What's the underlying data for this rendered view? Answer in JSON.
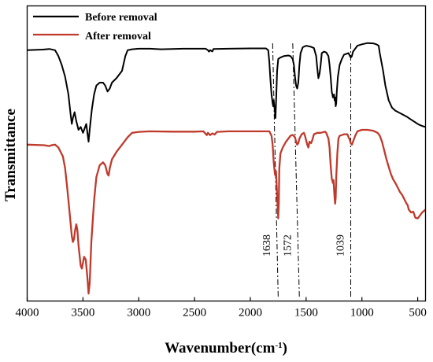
{
  "chart_data": {
    "type": "line",
    "title": "",
    "xlabel": "Wavenumber(cm",
    "xlabel_sup": "-1",
    "xlabel_close": ")",
    "ylabel": "Transmittance",
    "xlim": [
      4000,
      430
    ],
    "ylim": [
      0,
      100
    ],
    "x_reversed": true,
    "grid": false,
    "legend_position": "top-left",
    "x_ticks": [
      "4000",
      "3500",
      "3000",
      "2500",
      "2000",
      "1500",
      "1000",
      "500"
    ],
    "series": [
      {
        "name": "Before removal",
        "color": "#000000",
        "points": [
          [
            4000,
            85
          ],
          [
            3860,
            85.2
          ],
          [
            3800,
            85.4
          ],
          [
            3750,
            85
          ],
          [
            3720,
            83
          ],
          [
            3690,
            80
          ],
          [
            3660,
            76
          ],
          [
            3630,
            70
          ],
          [
            3610,
            63
          ],
          [
            3600,
            60
          ],
          [
            3590,
            62
          ],
          [
            3575,
            64
          ],
          [
            3560,
            61
          ],
          [
            3540,
            58
          ],
          [
            3520,
            59
          ],
          [
            3500,
            57
          ],
          [
            3490,
            58
          ],
          [
            3470,
            60
          ],
          [
            3460,
            57
          ],
          [
            3450,
            54
          ],
          [
            3440,
            58
          ],
          [
            3420,
            65
          ],
          [
            3400,
            70
          ],
          [
            3380,
            73
          ],
          [
            3350,
            74
          ],
          [
            3320,
            74
          ],
          [
            3300,
            73
          ],
          [
            3280,
            71
          ],
          [
            3260,
            72
          ],
          [
            3240,
            74
          ],
          [
            3200,
            75.5
          ],
          [
            3150,
            78
          ],
          [
            3120,
            83
          ],
          [
            3100,
            85
          ],
          [
            3060,
            85.3
          ],
          [
            3000,
            85.5
          ],
          [
            2900,
            85.5
          ],
          [
            2800,
            85.3
          ],
          [
            2600,
            85.5
          ],
          [
            2400,
            85.5
          ],
          [
            2380,
            85
          ],
          [
            2370,
            84.5
          ],
          [
            2360,
            85
          ],
          [
            2340,
            84.6
          ],
          [
            2330,
            85.4
          ],
          [
            2200,
            85.5
          ],
          [
            2000,
            85.6
          ],
          [
            1860,
            85.6
          ],
          [
            1840,
            85
          ],
          [
            1830,
            81
          ],
          [
            1820,
            75
          ],
          [
            1810,
            70
          ],
          [
            1800,
            67
          ],
          [
            1795,
            66
          ],
          [
            1790,
            68
          ],
          [
            1780,
            64
          ],
          [
            1775,
            62
          ],
          [
            1770,
            67
          ],
          [
            1760,
            78
          ],
          [
            1750,
            82
          ],
          [
            1730,
            82.5
          ],
          [
            1700,
            83
          ],
          [
            1660,
            83.2
          ],
          [
            1640,
            83
          ],
          [
            1620,
            82
          ],
          [
            1610,
            80
          ],
          [
            1600,
            76
          ],
          [
            1590,
            73
          ],
          [
            1580,
            72
          ],
          [
            1570,
            74
          ],
          [
            1560,
            80
          ],
          [
            1550,
            84
          ],
          [
            1530,
            86
          ],
          [
            1500,
            86.5
          ],
          [
            1460,
            86.2
          ],
          [
            1430,
            85.7
          ],
          [
            1410,
            83
          ],
          [
            1400,
            79
          ],
          [
            1390,
            75.5
          ],
          [
            1380,
            77
          ],
          [
            1370,
            80
          ],
          [
            1360,
            84
          ],
          [
            1340,
            84.5
          ],
          [
            1320,
            84.2
          ],
          [
            1300,
            83
          ],
          [
            1290,
            80
          ],
          [
            1280,
            76
          ],
          [
            1270,
            71
          ],
          [
            1260,
            69
          ],
          [
            1250,
            70
          ],
          [
            1245,
            68
          ],
          [
            1240,
            69
          ],
          [
            1235,
            66
          ],
          [
            1230,
            67
          ],
          [
            1225,
            71
          ],
          [
            1215,
            76
          ],
          [
            1200,
            80
          ],
          [
            1180,
            82
          ],
          [
            1160,
            83.5
          ],
          [
            1120,
            84
          ],
          [
            1100,
            82.5
          ],
          [
            1090,
            83
          ],
          [
            1080,
            84.5
          ],
          [
            1060,
            85.5
          ],
          [
            1040,
            86.5
          ],
          [
            1000,
            87
          ],
          [
            950,
            87.4
          ],
          [
            900,
            87.3
          ],
          [
            870,
            87
          ],
          [
            850,
            86.5
          ],
          [
            840,
            84
          ],
          [
            830,
            82
          ],
          [
            810,
            78
          ],
          [
            790,
            73
          ],
          [
            760,
            68
          ],
          [
            730,
            65.5
          ],
          [
            700,
            64.5
          ],
          [
            650,
            63.5
          ],
          [
            600,
            62.5
          ],
          [
            560,
            61.5
          ],
          [
            520,
            60.5
          ],
          [
            490,
            59.8
          ],
          [
            460,
            59.3
          ],
          [
            430,
            59
          ]
        ]
      },
      {
        "name": "After removal",
        "color": "#c0392b",
        "points": [
          [
            4000,
            53
          ],
          [
            3850,
            52.8
          ],
          [
            3800,
            52.5
          ],
          [
            3780,
            52.8
          ],
          [
            3750,
            53
          ],
          [
            3720,
            52
          ],
          [
            3700,
            50.5
          ],
          [
            3680,
            49
          ],
          [
            3660,
            45
          ],
          [
            3640,
            38
          ],
          [
            3620,
            30
          ],
          [
            3600,
            22
          ],
          [
            3590,
            20
          ],
          [
            3580,
            21
          ],
          [
            3570,
            24
          ],
          [
            3560,
            26
          ],
          [
            3550,
            24
          ],
          [
            3540,
            19
          ],
          [
            3520,
            12
          ],
          [
            3510,
            11
          ],
          [
            3500,
            13
          ],
          [
            3490,
            15
          ],
          [
            3475,
            14
          ],
          [
            3460,
            8
          ],
          [
            3450,
            2.5
          ],
          [
            3440,
            6
          ],
          [
            3425,
            20
          ],
          [
            3400,
            34
          ],
          [
            3380,
            42
          ],
          [
            3350,
            46
          ],
          [
            3320,
            47
          ],
          [
            3300,
            46
          ],
          [
            3280,
            43
          ],
          [
            3270,
            42.5
          ],
          [
            3260,
            45
          ],
          [
            3240,
            48
          ],
          [
            3200,
            50.5
          ],
          [
            3150,
            53
          ],
          [
            3100,
            55.5
          ],
          [
            3060,
            57
          ],
          [
            3000,
            57.3
          ],
          [
            2900,
            57.5
          ],
          [
            2700,
            57.4
          ],
          [
            2500,
            57.4
          ],
          [
            2420,
            57.5
          ],
          [
            2400,
            56.6
          ],
          [
            2390,
            56.2
          ],
          [
            2380,
            57
          ],
          [
            2360,
            56.2
          ],
          [
            2340,
            56.8
          ],
          [
            2320,
            56.4
          ],
          [
            2300,
            57.3
          ],
          [
            2200,
            57.5
          ],
          [
            2000,
            57.5
          ],
          [
            1900,
            57.5
          ],
          [
            1830,
            57.5
          ],
          [
            1810,
            56
          ],
          [
            1800,
            53
          ],
          [
            1790,
            47
          ],
          [
            1780,
            43
          ],
          [
            1775,
            42.5
          ],
          [
            1770,
            44
          ],
          [
            1765,
            40
          ],
          [
            1760,
            36
          ],
          [
            1755,
            32
          ],
          [
            1750,
            28
          ],
          [
            1745,
            33
          ],
          [
            1740,
            45
          ],
          [
            1730,
            50
          ],
          [
            1710,
            52
          ],
          [
            1680,
            54
          ],
          [
            1660,
            55
          ],
          [
            1640,
            56
          ],
          [
            1620,
            56.3
          ],
          [
            1600,
            55.5
          ],
          [
            1590,
            54
          ],
          [
            1580,
            53
          ],
          [
            1570,
            53.5
          ],
          [
            1560,
            55
          ],
          [
            1540,
            56.5
          ],
          [
            1520,
            57
          ],
          [
            1510,
            56
          ],
          [
            1500,
            54.5
          ],
          [
            1490,
            53
          ],
          [
            1480,
            52
          ],
          [
            1470,
            54
          ],
          [
            1455,
            53.5
          ],
          [
            1445,
            54.5
          ],
          [
            1430,
            56.5
          ],
          [
            1400,
            57
          ],
          [
            1370,
            57
          ],
          [
            1330,
            57.4
          ],
          [
            1320,
            57
          ],
          [
            1300,
            55
          ],
          [
            1290,
            52
          ],
          [
            1280,
            46
          ],
          [
            1270,
            41.5
          ],
          [
            1260,
            40
          ],
          [
            1255,
            41
          ],
          [
            1250,
            38
          ],
          [
            1245,
            35
          ],
          [
            1240,
            33
          ],
          [
            1235,
            35
          ],
          [
            1230,
            42
          ],
          [
            1220,
            50
          ],
          [
            1210,
            55
          ],
          [
            1200,
            56
          ],
          [
            1180,
            56.2
          ],
          [
            1160,
            56.5
          ],
          [
            1130,
            56.5
          ],
          [
            1120,
            55.5
          ],
          [
            1110,
            54.8
          ],
          [
            1100,
            53.5
          ],
          [
            1090,
            53
          ],
          [
            1080,
            54
          ],
          [
            1060,
            56
          ],
          [
            1040,
            57.5
          ],
          [
            1000,
            58
          ],
          [
            950,
            58
          ],
          [
            900,
            57.7
          ],
          [
            860,
            57
          ],
          [
            840,
            56
          ],
          [
            820,
            54
          ],
          [
            800,
            51
          ],
          [
            780,
            48
          ],
          [
            760,
            45.5
          ],
          [
            740,
            43
          ],
          [
            720,
            41.2
          ],
          [
            700,
            40
          ],
          [
            680,
            38.5
          ],
          [
            660,
            37
          ],
          [
            640,
            36
          ],
          [
            620,
            34.5
          ],
          [
            600,
            33
          ],
          [
            590,
            32.5
          ],
          [
            580,
            31
          ],
          [
            560,
            30
          ],
          [
            540,
            30.3
          ],
          [
            520,
            28.2
          ],
          [
            500,
            28
          ],
          [
            480,
            29
          ],
          [
            460,
            30
          ],
          [
            445,
            30.5
          ],
          [
            430,
            31
          ]
        ]
      }
    ],
    "annotations": [
      {
        "label": "1638",
        "x_top": 1800,
        "x_bottom": 1750
      },
      {
        "label": "1572",
        "x_top": 1620,
        "x_bottom": 1560
      },
      {
        "label": "1039",
        "x_top": 1100,
        "x_bottom": 1100
      }
    ]
  }
}
